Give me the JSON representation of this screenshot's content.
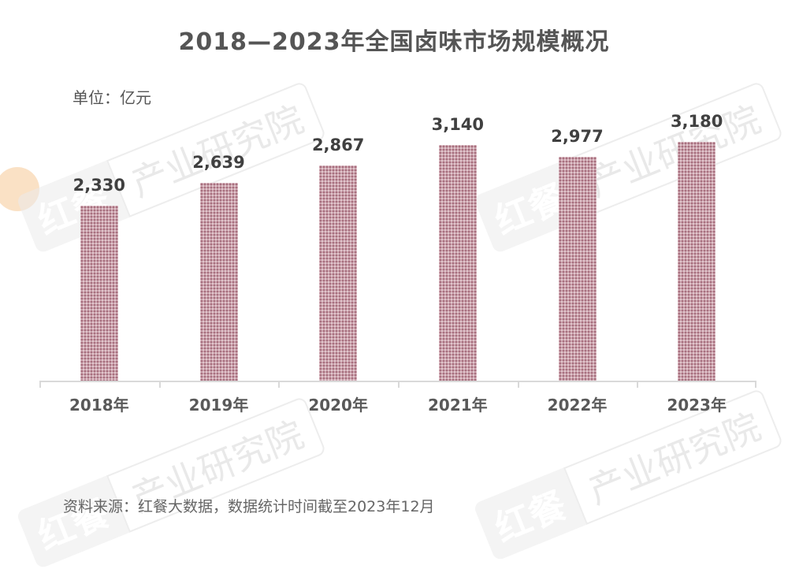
{
  "title": "2018—2023年全国卤味市场规模概况",
  "unit_label": "单位：亿元",
  "source_note": "资料来源：红餐大数据，数据统计时间截至2023年12月",
  "watermark": {
    "brand": "红餐",
    "text": "产业研究院"
  },
  "colors": {
    "bar_fill": "#c9a0ab",
    "bar_dot_dark": "#9e6373",
    "text_dark": "#404040",
    "axis": "#d9d9d9"
  },
  "chart_data": {
    "type": "bar",
    "title": "2018—2023年全国卤味市场规模概况",
    "xlabel": "",
    "ylabel": "单位：亿元",
    "categories": [
      "2018年",
      "2019年",
      "2020年",
      "2021年",
      "2022年",
      "2023年"
    ],
    "values": [
      2330,
      2639,
      2867,
      3140,
      2977,
      3180
    ],
    "value_labels": [
      "2,330",
      "2,639",
      "2,867",
      "3,140",
      "2,977",
      "3,180"
    ],
    "ylim": [
      0,
      3180
    ],
    "grid": false,
    "legend": null
  }
}
